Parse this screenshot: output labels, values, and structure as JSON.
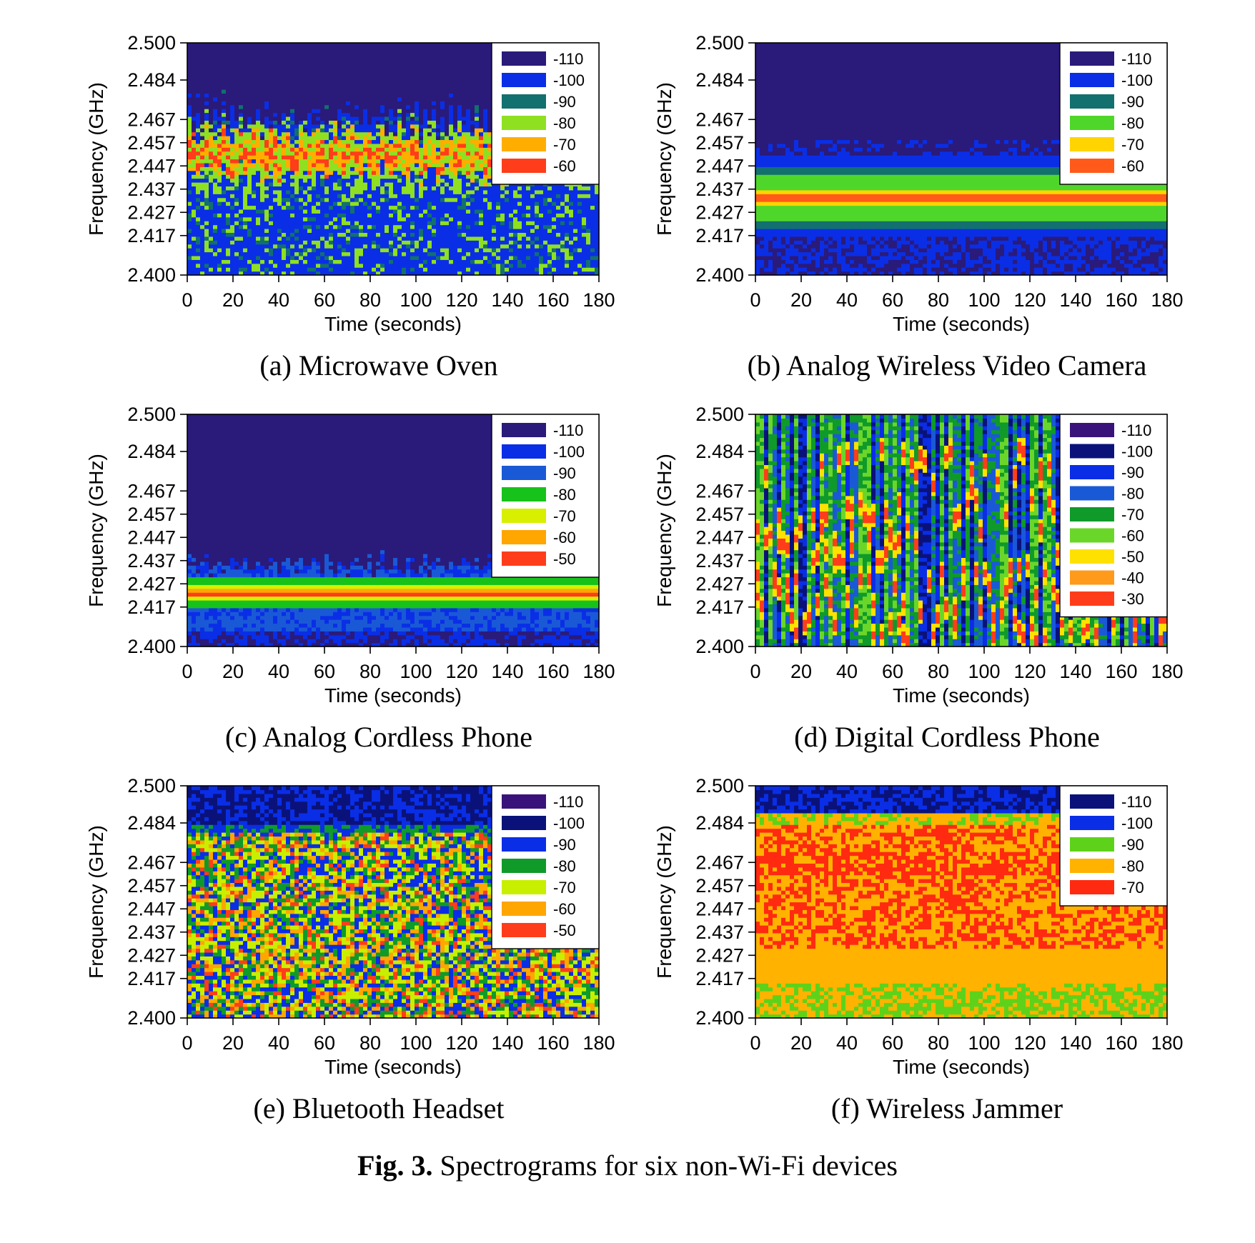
{
  "figure_caption": {
    "label": "Fig. 3.",
    "text": " Spectrograms for six non-Wi-Fi devices"
  },
  "chart_data": [
    {
      "type": "heatmap",
      "caption": "(a) Microwave Oven",
      "xlabel": "Time (seconds)",
      "ylabel": "Frequency (GHz)",
      "x_ticks": [
        0,
        20,
        40,
        60,
        80,
        100,
        120,
        140,
        160,
        180
      ],
      "y_ticks": [
        "2.500",
        "2.484",
        "2.467",
        "2.457",
        "2.447",
        "2.437",
        "2.427",
        "2.417",
        "2.400"
      ],
      "xlim": [
        0,
        180
      ],
      "ylim": [
        2.4,
        2.5
      ],
      "legend": {
        "position": "top-right",
        "entries": [
          {
            "label": "-110",
            "color": "#2a1a7a"
          },
          {
            "label": "-100",
            "color": "#0a2ee6"
          },
          {
            "label": "-90",
            "color": "#12706e"
          },
          {
            "label": "-80",
            "color": "#8fe021"
          },
          {
            "label": "-70",
            "color": "#ffae00"
          },
          {
            "label": "-60",
            "color": "#ff3d1a"
          }
        ]
      },
      "signal": {
        "center_ghz": 2.452,
        "band_ghz": [
          2.4,
          2.47
        ],
        "pattern": "wandering-band"
      }
    },
    {
      "type": "heatmap",
      "caption": "(b) Analog Wireless Video Camera",
      "xlabel": "Time (seconds)",
      "ylabel": "Frequency (GHz)",
      "x_ticks": [
        0,
        20,
        40,
        60,
        80,
        100,
        120,
        140,
        160,
        180
      ],
      "y_ticks": [
        "2.500",
        "2.484",
        "2.467",
        "2.457",
        "2.447",
        "2.437",
        "2.427",
        "2.417",
        "2.400"
      ],
      "xlim": [
        0,
        180
      ],
      "ylim": [
        2.4,
        2.5
      ],
      "legend": {
        "position": "top-right",
        "entries": [
          {
            "label": "-110",
            "color": "#2a1a7a"
          },
          {
            "label": "-100",
            "color": "#0a2ee6"
          },
          {
            "label": "-90",
            "color": "#12706e"
          },
          {
            "label": "-80",
            "color": "#4fd62a"
          },
          {
            "label": "-70",
            "color": "#ffd400"
          },
          {
            "label": "-60",
            "color": "#ff5a1a"
          }
        ]
      },
      "signal": {
        "center_ghz": 2.433,
        "band_ghz": [
          2.416,
          2.455
        ],
        "pattern": "steady-band"
      }
    },
    {
      "type": "heatmap",
      "caption": "(c) Analog Cordless Phone",
      "xlabel": "Time (seconds)",
      "ylabel": "Frequency (GHz)",
      "x_ticks": [
        0,
        20,
        40,
        60,
        80,
        100,
        120,
        140,
        160,
        180
      ],
      "y_ticks": [
        "2.500",
        "2.484",
        "2.467",
        "2.457",
        "2.447",
        "2.437",
        "2.427",
        "2.417",
        "2.400"
      ],
      "xlim": [
        0,
        180
      ],
      "ylim": [
        2.4,
        2.5
      ],
      "legend": {
        "position": "top-right",
        "entries": [
          {
            "label": "-110",
            "color": "#2a1a7a"
          },
          {
            "label": "-100",
            "color": "#0a2ee6"
          },
          {
            "label": "-90",
            "color": "#1a59d6"
          },
          {
            "label": "-80",
            "color": "#17c21a"
          },
          {
            "label": "-70",
            "color": "#d8f000"
          },
          {
            "label": "-60",
            "color": "#ffa600"
          },
          {
            "label": "-50",
            "color": "#ff3d1a"
          }
        ]
      },
      "signal": {
        "center_ghz": 2.423,
        "band_ghz": [
          2.4,
          2.44
        ],
        "pattern": "steady-band"
      }
    },
    {
      "type": "heatmap",
      "caption": "(d) Digital Cordless Phone",
      "xlabel": "Time (seconds)",
      "ylabel": "Frequency (GHz)",
      "x_ticks": [
        0,
        20,
        40,
        60,
        80,
        100,
        120,
        140,
        160,
        180
      ],
      "y_ticks": [
        "2.500",
        "2.484",
        "2.467",
        "2.457",
        "2.447",
        "2.437",
        "2.427",
        "2.417",
        "2.400"
      ],
      "xlim": [
        0,
        180
      ],
      "ylim": [
        2.4,
        2.5
      ],
      "legend": {
        "position": "top-right",
        "entries": [
          {
            "label": "-110",
            "color": "#3a137a"
          },
          {
            "label": "-100",
            "color": "#0a127a"
          },
          {
            "label": "-90",
            "color": "#0a2ee6"
          },
          {
            "label": "-80",
            "color": "#1a59d6"
          },
          {
            "label": "-70",
            "color": "#0f9a2a"
          },
          {
            "label": "-60",
            "color": "#6bd62a"
          },
          {
            "label": "-50",
            "color": "#ffe100"
          },
          {
            "label": "-40",
            "color": "#ff9a1a"
          },
          {
            "label": "-30",
            "color": "#ff3d1a"
          }
        ]
      },
      "signal": {
        "band_ghz": [
          2.4,
          2.5
        ],
        "pattern": "frequency-hopping"
      }
    },
    {
      "type": "heatmap",
      "caption": "(e) Bluetooth Headset",
      "xlabel": "Time (seconds)",
      "ylabel": "Frequency (GHz)",
      "x_ticks": [
        0,
        20,
        40,
        60,
        80,
        100,
        120,
        140,
        160,
        180
      ],
      "y_ticks": [
        "2.500",
        "2.484",
        "2.467",
        "2.457",
        "2.447",
        "2.437",
        "2.427",
        "2.417",
        "2.400"
      ],
      "xlim": [
        0,
        180
      ],
      "ylim": [
        2.4,
        2.5
      ],
      "legend": {
        "position": "top-right",
        "entries": [
          {
            "label": "-110",
            "color": "#3a137a"
          },
          {
            "label": "-100",
            "color": "#0a127a"
          },
          {
            "label": "-90",
            "color": "#0a2ee6"
          },
          {
            "label": "-80",
            "color": "#0f9a2a"
          },
          {
            "label": "-70",
            "color": "#c8ef00"
          },
          {
            "label": "-60",
            "color": "#ffa600"
          },
          {
            "label": "-50",
            "color": "#ff3d1a"
          }
        ]
      },
      "signal": {
        "band_ghz": [
          2.4,
          2.482
        ],
        "pattern": "frequency-hopping"
      }
    },
    {
      "type": "heatmap",
      "caption": "(f) Wireless Jammer",
      "xlabel": "Time (seconds)",
      "ylabel": "Frequency (GHz)",
      "x_ticks": [
        0,
        20,
        40,
        60,
        80,
        100,
        120,
        140,
        160,
        180
      ],
      "y_ticks": [
        "2.500",
        "2.484",
        "2.467",
        "2.457",
        "2.447",
        "2.437",
        "2.427",
        "2.417",
        "2.400"
      ],
      "xlim": [
        0,
        180
      ],
      "ylim": [
        2.4,
        2.5
      ],
      "legend": {
        "position": "top-right",
        "entries": [
          {
            "label": "-110",
            "color": "#0a127a"
          },
          {
            "label": "-100",
            "color": "#0a2ee6"
          },
          {
            "label": "-90",
            "color": "#5ed21a"
          },
          {
            "label": "-80",
            "color": "#ffb300"
          },
          {
            "label": "-70",
            "color": "#ff2a10"
          }
        ]
      },
      "signal": {
        "band_ghz": [
          2.4,
          2.484
        ],
        "pattern": "wideband"
      }
    }
  ]
}
